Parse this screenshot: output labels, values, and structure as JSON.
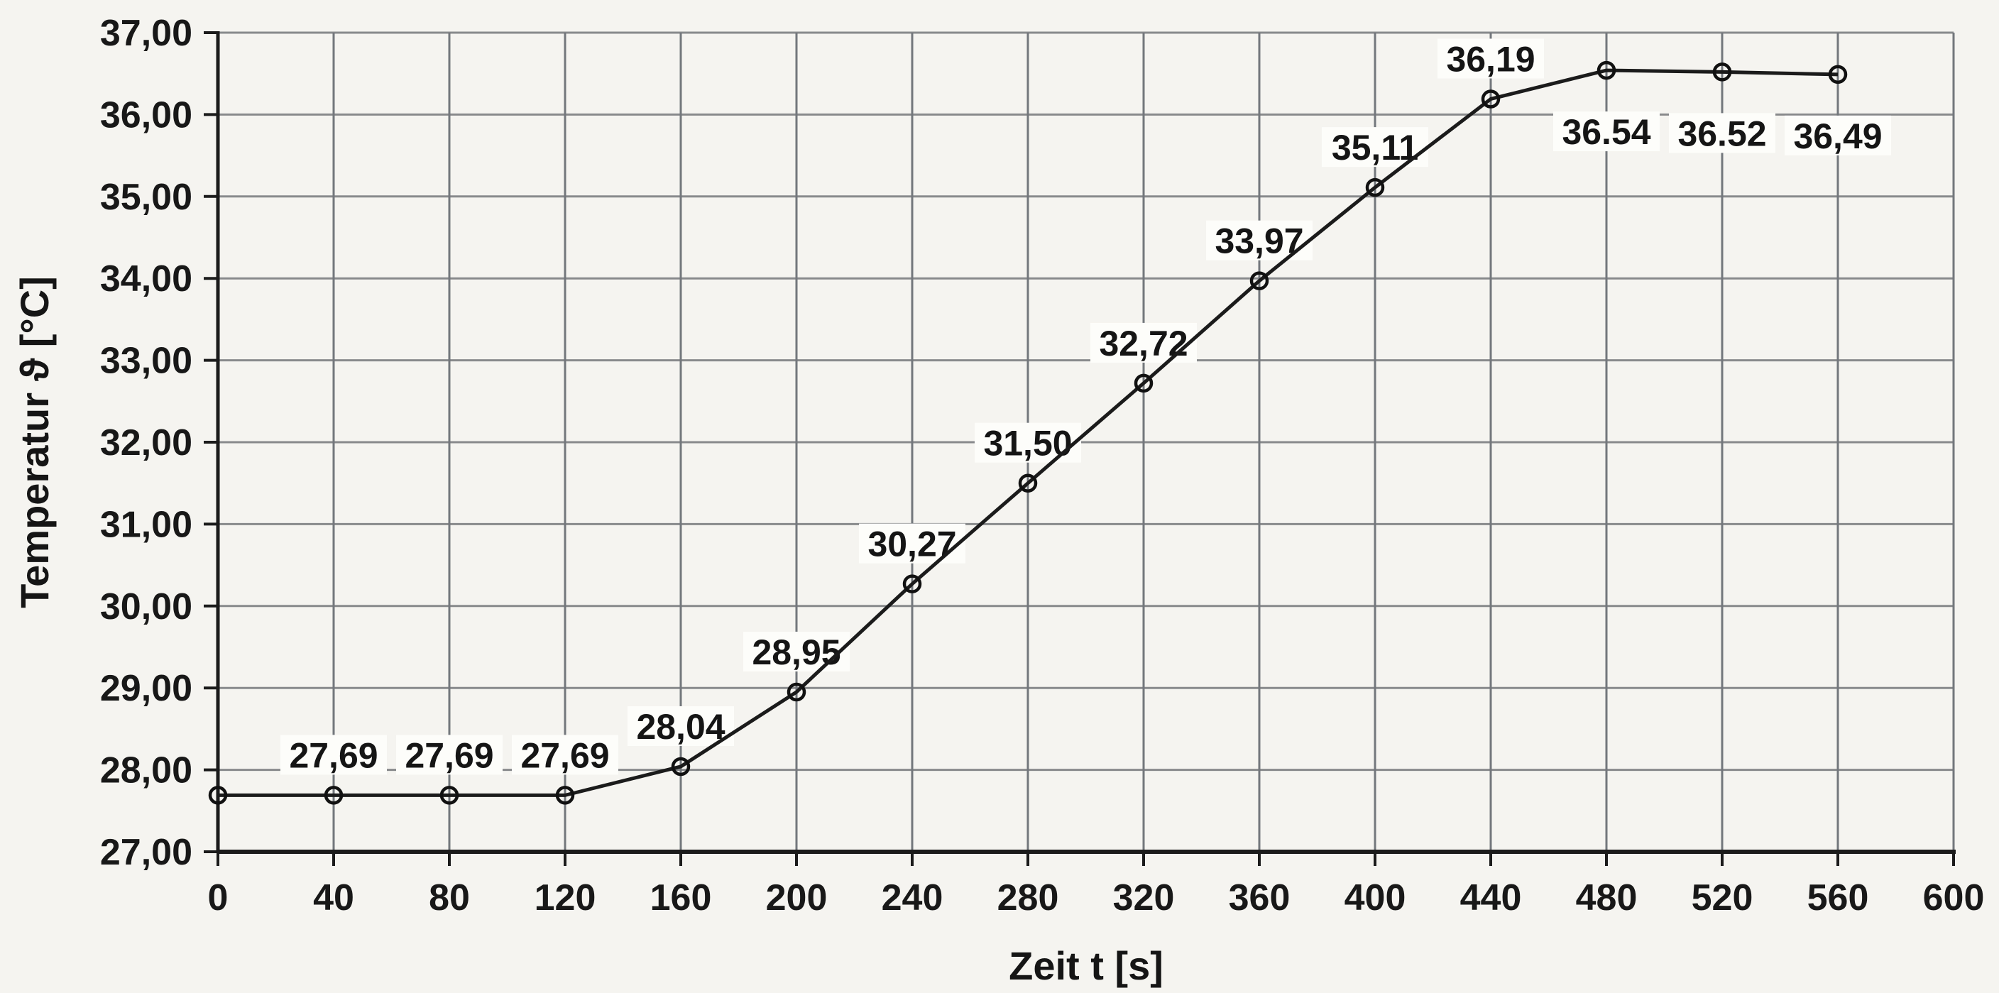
{
  "page": {
    "background_color": "#f5f4f0"
  },
  "chart_data": {
    "type": "line",
    "title": "",
    "xlabel": "Zeit t [s]",
    "ylabel": "Temperatur ϑ [°C]",
    "xlim": [
      0,
      600
    ],
    "ylim": [
      27,
      37
    ],
    "grid": true,
    "legend": "none",
    "marker": "open-circle",
    "series_name": "Temperatur",
    "points": [
      {
        "t": 0,
        "value": 27.69,
        "label": null,
        "label_placement": null
      },
      {
        "t": 40,
        "value": 27.69,
        "label": "27,69",
        "label_placement": "above"
      },
      {
        "t": 80,
        "value": 27.69,
        "label": "27,69",
        "label_placement": "above"
      },
      {
        "t": 120,
        "value": 27.69,
        "label": "27,69",
        "label_placement": "above"
      },
      {
        "t": 160,
        "value": 28.04,
        "label": "28,04",
        "label_placement": "above"
      },
      {
        "t": 200,
        "value": 28.95,
        "label": "28,95",
        "label_placement": "above"
      },
      {
        "t": 240,
        "value": 30.27,
        "label": "30,27",
        "label_placement": "above"
      },
      {
        "t": 280,
        "value": 31.5,
        "label": "31,50",
        "label_placement": "above"
      },
      {
        "t": 320,
        "value": 32.72,
        "label": "32,72",
        "label_placement": "above"
      },
      {
        "t": 360,
        "value": 33.97,
        "label": "33,97",
        "label_placement": "above"
      },
      {
        "t": 400,
        "value": 35.11,
        "label": "35,11",
        "label_placement": "above"
      },
      {
        "t": 440,
        "value": 36.19,
        "label": "36,19",
        "label_placement": "above"
      },
      {
        "t": 480,
        "value": 36.54,
        "label": "36.54",
        "label_placement": "below"
      },
      {
        "t": 520,
        "value": 36.52,
        "label": "36.52",
        "label_placement": "below"
      },
      {
        "t": 560,
        "value": 36.49,
        "label": "36,49",
        "label_placement": "below"
      }
    ],
    "x_ticks": {
      "values": [
        0,
        40,
        80,
        120,
        160,
        200,
        240,
        280,
        320,
        360,
        400,
        440,
        480,
        520,
        560,
        600
      ],
      "labels": [
        "0",
        "40",
        "80",
        "120",
        "160",
        "200",
        "240",
        "280",
        "320",
        "360",
        "400",
        "440",
        "480",
        "520",
        "560",
        "600"
      ]
    },
    "y_ticks": {
      "values": [
        27,
        28,
        29,
        30,
        31,
        32,
        33,
        34,
        35,
        36,
        37
      ],
      "labels": [
        "27,00",
        "28,00",
        "29,00",
        "30,00",
        "31,00",
        "32,00",
        "33,00",
        "34,00",
        "35,00",
        "36,00",
        "37,00"
      ]
    },
    "colors": {
      "paper": "#f5f4f0",
      "grid_vertical": "#73777c",
      "grid_horizontal": "#888a8c",
      "axis": "#1b1b1b",
      "series_line": "#1b1b1b",
      "marker_stroke": "#111111",
      "text": "#161616",
      "label_background": "#fdfdfa"
    }
  }
}
